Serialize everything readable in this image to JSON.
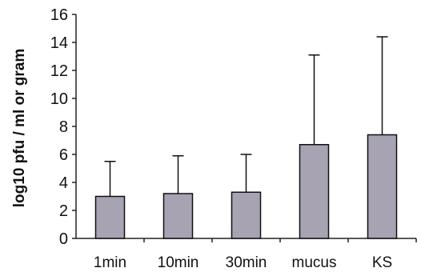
{
  "chart_data": {
    "type": "bar",
    "title": "",
    "xlabel": "",
    "ylabel": "log10  pfu / ml  or gram",
    "ylim": [
      0,
      16
    ],
    "yticks": [
      0,
      2,
      4,
      6,
      8,
      10,
      12,
      14,
      16
    ],
    "categories": [
      "1min",
      "10min",
      "30min",
      "mucus",
      "KS"
    ],
    "values": [
      3.0,
      3.2,
      3.3,
      6.7,
      7.4
    ],
    "error_upper": [
      5.5,
      5.9,
      6.0,
      13.1,
      14.4
    ],
    "bar_color": "#a7a3b3",
    "grid": false,
    "legend": "none"
  }
}
